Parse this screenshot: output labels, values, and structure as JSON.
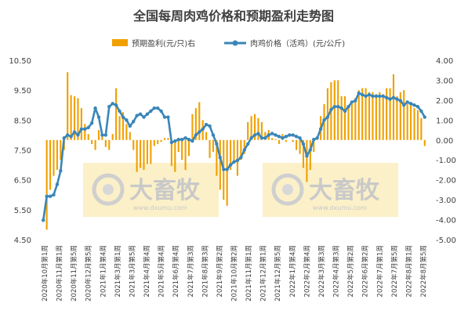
{
  "chart_data": {
    "type": "bar+line",
    "title": "全国每周肉鸡价格和预期盈利走势图",
    "legend": {
      "bar_label": "预期盈利(元/只)右",
      "line_label": "肉鸡价格（活鸡）(元/公斤)"
    },
    "colors": {
      "bar": "#f0a000",
      "line": "#3a86b8",
      "watermark_bg": "#fbf0c8"
    },
    "y_left": {
      "min": 4.5,
      "max": 10.5,
      "ticks": [
        "10.50",
        "9.50",
        "8.50",
        "7.50",
        "6.50",
        "5.50",
        "4.50"
      ]
    },
    "y_right": {
      "min": -5.0,
      "max": 4.0,
      "ticks": [
        "4.00",
        "3.00",
        "2.00",
        "1.00",
        "0.00",
        "-1.00",
        "-2.00",
        "-3.00",
        "-4.00",
        "-5.00"
      ]
    },
    "x_tick_labels": [
      "2020年10月第1周",
      "2020年11月第1周",
      "2020年11月第5周",
      "2020年12月第5周",
      "2021年1月第4周",
      "2021年3月第1周",
      "2021年3月第5周",
      "2021年4月第4周",
      "2021年5月第4周",
      "2021年6月第4周",
      "2021年7月第3周",
      "2021年8月第3周",
      "2021年9月第2周",
      "2021年10月第2周",
      "2021年11月第1周",
      "2021年12月第1周",
      "2021年12月第5周",
      "2022年1月第4周",
      "2022年2月第4周",
      "2022年3月第3周",
      "2022年4月第3周",
      "2022年5月第2周",
      "2022年6月第2周",
      "2022年7月第1周",
      "2022年7月第5周",
      "2022年8月第1周",
      "2022年8月第5周"
    ],
    "price": [
      5.15,
      5.95,
      5.95,
      6.0,
      6.35,
      6.8,
      7.9,
      8.0,
      7.95,
      8.1,
      8.0,
      8.2,
      8.2,
      8.25,
      8.4,
      8.9,
      8.6,
      8.0,
      8.0,
      8.95,
      9.05,
      9.0,
      8.8,
      8.6,
      8.5,
      8.3,
      8.45,
      8.65,
      8.7,
      8.6,
      8.7,
      8.8,
      8.9,
      8.9,
      8.8,
      8.6,
      8.6,
      7.75,
      7.8,
      7.85,
      7.85,
      7.9,
      7.85,
      7.8,
      8.0,
      8.1,
      8.2,
      8.35,
      8.3,
      8.0,
      7.7,
      7.25,
      6.85,
      6.85,
      7.0,
      7.1,
      7.15,
      7.25,
      7.5,
      7.7,
      7.9,
      8.0,
      8.05,
      7.9,
      7.9,
      8.0,
      8.05,
      8.0,
      7.95,
      7.9,
      7.95,
      8.0,
      8.0,
      7.95,
      7.9,
      7.7,
      7.3,
      7.5,
      7.85,
      7.9,
      8.2,
      8.5,
      8.6,
      8.85,
      8.95,
      8.95,
      8.9,
      8.8,
      8.95,
      9.1,
      9.15,
      9.4,
      9.35,
      9.3,
      9.35,
      9.3,
      9.3,
      9.3,
      9.3,
      9.25,
      9.2,
      9.25,
      9.2,
      9.15,
      9.0,
      9.1,
      9.05,
      9.0,
      8.95,
      8.8,
      8.6
    ],
    "profit": [
      0.0,
      -4.5,
      -2.5,
      -1.8,
      -1.5,
      -1.0,
      -0.5,
      3.4,
      2.25,
      2.2,
      2.1,
      1.6,
      0.8,
      0.3,
      -0.2,
      -0.5,
      0.5,
      0.25,
      -0.35,
      -0.5,
      0.3,
      2.6,
      1.2,
      1.4,
      0.8,
      0.4,
      -0.5,
      -1.6,
      -1.4,
      -1.5,
      -1.2,
      -1.2,
      -0.3,
      -0.2,
      -0.1,
      0.1,
      0.1,
      -1.3,
      -1.6,
      -0.6,
      -1.0,
      -1.5,
      -0.8,
      1.3,
      1.6,
      1.9,
      1.0,
      0.4,
      -0.9,
      -0.6,
      -1.8,
      -2.5,
      -3.0,
      -3.3,
      -1.5,
      -1.1,
      -1.8,
      -1.0,
      -0.7,
      0.9,
      1.2,
      1.3,
      1.1,
      0.9,
      0.4,
      0.5,
      0.1,
      0.05,
      -0.2,
      0.3,
      -0.1,
      0.0,
      -0.1,
      -0.5,
      -0.7,
      -1.4,
      -2.1,
      -1.5,
      -0.6,
      0.1,
      1.2,
      1.8,
      2.6,
      2.9,
      3.0,
      3.0,
      2.2,
      2.2,
      1.6,
      1.8,
      2.1,
      2.5,
      2.6,
      2.6,
      2.4,
      2.4,
      2.3,
      2.4,
      2.3,
      2.6,
      2.6,
      3.3,
      2.2,
      2.4,
      2.5,
      1.8,
      1.8,
      1.6,
      1.5,
      1.1,
      -0.3
    ]
  }
}
